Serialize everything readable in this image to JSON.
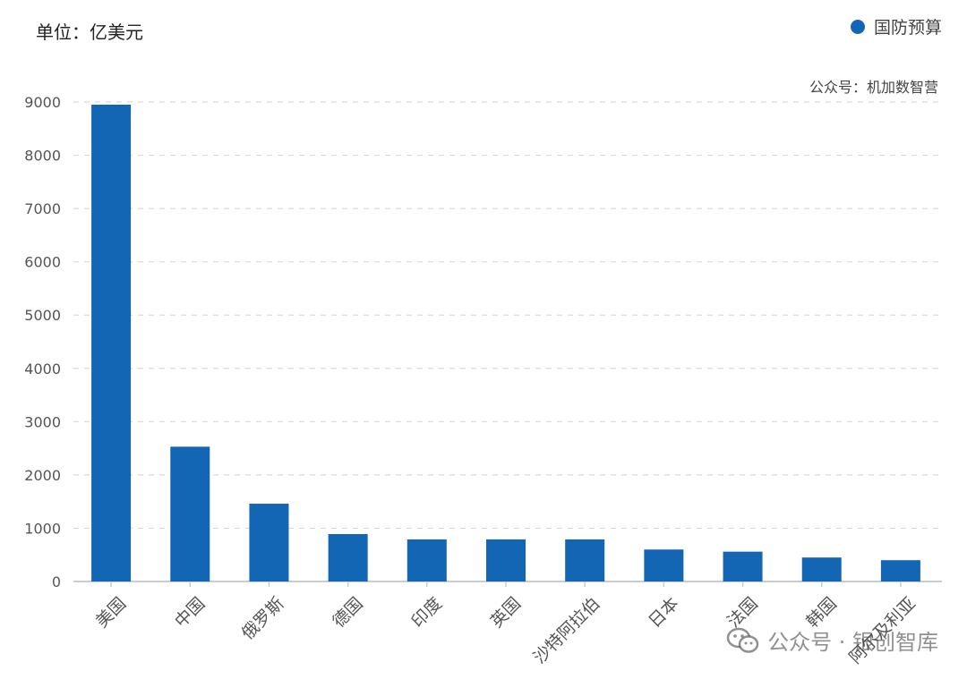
{
  "header": {
    "unit": "单位：亿美元",
    "source": "公众号：机加数智营"
  },
  "watermark": {
    "text": "公众号 · 银创智库",
    "icon": "wechat-icon"
  },
  "colors": {
    "bar": "#1366b3",
    "grid": "#d9d9d9",
    "axis": "#c8ccd4"
  },
  "chart_data": {
    "type": "bar",
    "categories": [
      "美国",
      "中国",
      "俄罗斯",
      "德国",
      "印度",
      "英国",
      "沙特阿拉伯",
      "日本",
      "法国",
      "韩国",
      "阿尔及利亚"
    ],
    "series": [
      {
        "name": "国防预算",
        "values": [
          8950,
          2530,
          1460,
          890,
          790,
          790,
          790,
          600,
          560,
          450,
          400
        ]
      }
    ],
    "yticks": [
      0,
      1000,
      2000,
      3000,
      4000,
      5000,
      6000,
      7000,
      8000,
      9000
    ],
    "ylim": [
      0,
      9000
    ],
    "grid": true,
    "legend_position": "top-right"
  }
}
